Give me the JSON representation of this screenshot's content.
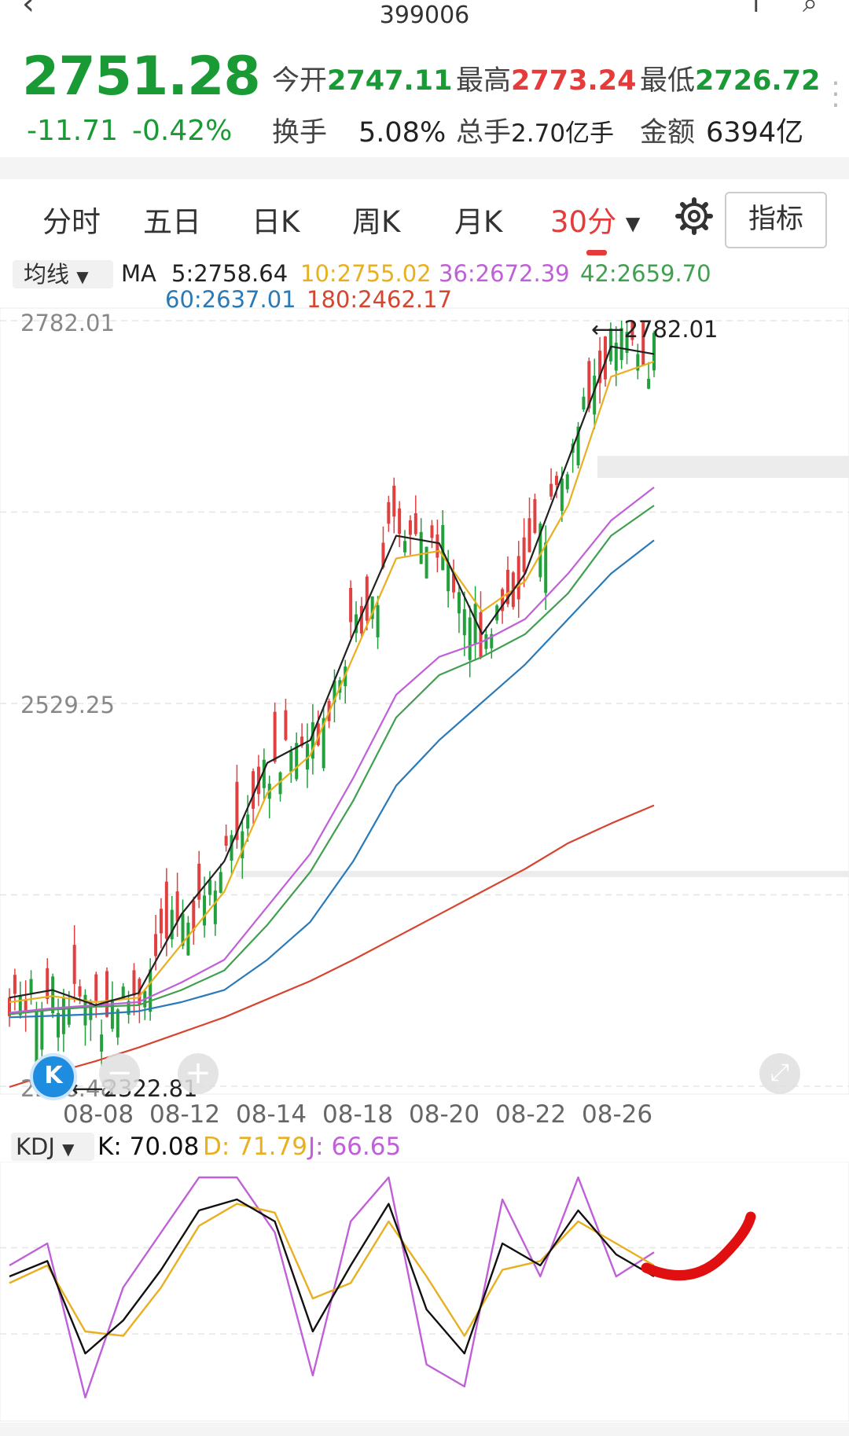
{
  "header": {
    "code": "399006",
    "back_icon": "back-arrow-icon",
    "right_icons": "share-icon search-icon"
  },
  "quote": {
    "price": "2751.28",
    "change": "-11.71",
    "change_pct": "-0.42%",
    "open_label": "今开",
    "open_value": "2747.11",
    "high_label": "最高",
    "high_value": "2773.24",
    "low_label": "最低",
    "low_value": "2726.72",
    "turnover_label": "换手",
    "turnover_value": "5.08%",
    "volume_label": "总手",
    "volume_value": "2.70亿手",
    "amount_label": "金额",
    "amount_value": "6394亿",
    "colors": {
      "down": "#1a9a35",
      "up": "#e53b3b"
    }
  },
  "tabs": {
    "items": [
      "分时",
      "五日",
      "日K",
      "周K",
      "月K",
      "30分"
    ],
    "active": "30分",
    "dropdown_icon": "caret-down-icon",
    "settings_icon": "gear-icon",
    "indicator_button": "指标"
  },
  "ma": {
    "selector": "均线",
    "label": "MA",
    "ma5": "5:2758.64",
    "ma10": "10:2755.02",
    "ma36": "36:2672.39",
    "ma42": "42:2659.70",
    "ma60": "60:2637.01",
    "ma180": "180:2462.17",
    "colors": {
      "ma5": "#222222",
      "ma10": "#e8b020",
      "ma36": "#c060d8",
      "ma42": "#40a050",
      "ma60": "#2a7ab8",
      "ma180": "#d64530"
    }
  },
  "chart_data": {
    "type": "line",
    "title": "",
    "y_ticks": [
      "2782.01",
      "2529.25",
      "2276.48"
    ],
    "high_marker": "2782.01",
    "low_marker": "2322.81",
    "x_ticks": [
      "08-08",
      "08-12",
      "08-14",
      "08-18",
      "08-20",
      "08-22",
      "08-26"
    ],
    "ylim": [
      2276.48,
      2782.01
    ],
    "series": [
      {
        "name": "5",
        "values": [
          2335,
          2340,
          2330,
          2338,
          2390,
          2425,
          2490,
          2505,
          2575,
          2640,
          2635,
          2575,
          2615,
          2690,
          2765,
          2760
        ]
      },
      {
        "name": "10",
        "values": [
          2332,
          2336,
          2332,
          2335,
          2370,
          2405,
          2470,
          2495,
          2560,
          2625,
          2630,
          2590,
          2610,
          2660,
          2745,
          2755
        ]
      },
      {
        "name": "36",
        "values": [
          2325,
          2328,
          2330,
          2332,
          2345,
          2360,
          2395,
          2430,
          2480,
          2535,
          2560,
          2570,
          2585,
          2615,
          2650,
          2672
        ]
      },
      {
        "name": "42",
        "values": [
          2324,
          2327,
          2329,
          2330,
          2340,
          2353,
          2383,
          2418,
          2465,
          2520,
          2548,
          2560,
          2575,
          2602,
          2640,
          2660
        ]
      },
      {
        "name": "60",
        "values": [
          2322,
          2323,
          2324,
          2326,
          2332,
          2340,
          2360,
          2385,
          2425,
          2475,
          2505,
          2530,
          2555,
          2585,
          2615,
          2637
        ]
      },
      {
        "name": "180",
        "values": [
          2276,
          2285,
          2293,
          2302,
          2312,
          2322,
          2334,
          2346,
          2360,
          2375,
          2390,
          2405,
          2420,
          2437,
          2450,
          2462
        ]
      }
    ],
    "grid": true
  },
  "kdj": {
    "selector": "KDJ",
    "k": "K: 70.08",
    "d": "D: 71.79",
    "j": "J: 66.65",
    "colors": {
      "k": "#111111",
      "d": "#e8b020",
      "j": "#c060d8"
    },
    "k_values": [
      55,
      62,
      20,
      35,
      58,
      85,
      90,
      80,
      30,
      60,
      88,
      40,
      20,
      70,
      60,
      85,
      65,
      55
    ],
    "d_values": [
      52,
      60,
      30,
      28,
      50,
      78,
      88,
      84,
      45,
      52,
      80,
      55,
      28,
      58,
      62,
      80,
      70,
      60
    ],
    "j_values": [
      60,
      70,
      0,
      50,
      75,
      100,
      100,
      75,
      10,
      80,
      100,
      15,
      5,
      90,
      55,
      100,
      55,
      66
    ]
  },
  "controls": {
    "k_button": "K",
    "zoom_out": "−",
    "zoom_in": "+",
    "fullscreen_icon": "expand-icon"
  }
}
